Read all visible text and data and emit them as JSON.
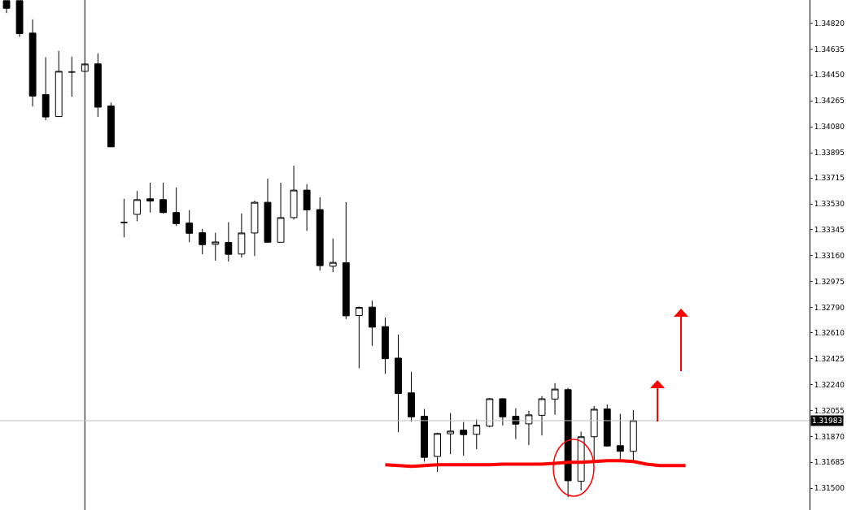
{
  "chart_data": {
    "type": "candlestick",
    "categories": [
      null,
      null,
      null,
      null,
      null,
      null,
      null,
      null,
      null,
      null,
      null,
      null,
      null,
      null,
      null,
      null,
      null,
      null,
      null,
      null,
      null,
      null,
      null,
      null,
      null,
      null,
      null,
      null,
      null,
      null,
      null,
      null,
      null,
      null,
      null,
      null,
      null,
      null,
      null,
      null,
      null,
      null,
      null,
      null,
      null,
      null,
      null,
      null,
      null,
      null,
      null,
      null,
      null,
      null,
      null,
      null,
      null,
      null,
      null,
      null,
      null,
      null
    ],
    "ohlc": [
      [
        1.3498,
        1.3498,
        1.34891,
        1.34926
      ],
      [
        1.3498,
        1.3498,
        1.34722,
        1.34745
      ],
      [
        1.34749,
        1.34847,
        1.34225,
        1.343
      ],
      [
        1.3431,
        1.34576,
        1.34127,
        1.3415
      ],
      [
        1.34153,
        1.34622,
        1.34153,
        1.34476
      ],
      [
        1.34473,
        1.34581,
        1.34295,
        1.3447
      ],
      [
        1.34476,
        1.34528,
        1.34476,
        1.34528
      ],
      [
        1.34529,
        1.34604,
        1.3415,
        1.3422
      ],
      [
        1.34229,
        1.34253,
        1.33937,
        1.33937
      ],
      [
        1.33397,
        1.33566,
        1.33291,
        1.33397
      ],
      [
        1.33455,
        1.33622,
        1.33406,
        1.3356
      ],
      [
        1.33566,
        1.33681,
        1.33468,
        1.3355
      ],
      [
        1.3356,
        1.33681,
        1.3346,
        1.33468
      ],
      [
        1.33468,
        1.33647,
        1.33372,
        1.33389
      ],
      [
        1.33393,
        1.33485,
        1.33256,
        1.3332
      ],
      [
        1.33324,
        1.33352,
        1.3317,
        1.33239
      ],
      [
        1.33241,
        1.33324,
        1.33124,
        1.33258
      ],
      [
        1.33255,
        1.33399,
        1.33118,
        1.3317
      ],
      [
        1.33172,
        1.33462,
        1.33147,
        1.33322
      ],
      [
        1.33322,
        1.33553,
        1.33158,
        1.33541
      ],
      [
        1.33541,
        1.3371,
        1.33256,
        1.33256
      ],
      [
        1.33256,
        1.33681,
        1.33256,
        1.33432
      ],
      [
        1.33432,
        1.33802,
        1.33418,
        1.33628
      ],
      [
        1.33628,
        1.3367,
        1.33337,
        1.33487
      ],
      [
        1.33489,
        1.33577,
        1.33054,
        1.33089
      ],
      [
        1.33085,
        1.33283,
        1.33043,
        1.33112
      ],
      [
        1.3311,
        1.33543,
        1.32708,
        1.32731
      ],
      [
        1.32733,
        1.32797,
        1.32356,
        1.32791
      ],
      [
        1.32793,
        1.32839,
        1.32517,
        1.3265
      ],
      [
        1.32654,
        1.32718,
        1.32316,
        1.32425
      ],
      [
        1.32429,
        1.32597,
        1.319,
        1.32177
      ],
      [
        1.32181,
        1.32331,
        1.31975,
        1.3201
      ],
      [
        1.32014,
        1.32066,
        1.3169,
        1.31721
      ],
      [
        1.31727,
        1.31897,
        1.31617,
        1.31891
      ],
      [
        1.31889,
        1.32037,
        1.31744,
        1.31908
      ],
      [
        1.31915,
        1.31973,
        1.31733,
        1.31883
      ],
      [
        1.31885,
        1.31991,
        1.31779,
        1.3195
      ],
      [
        1.31943,
        1.32145,
        1.31935,
        1.32139
      ],
      [
        1.32139,
        1.32143,
        1.31949,
        1.3201
      ],
      [
        1.32014,
        1.32071,
        1.31851,
        1.31958
      ],
      [
        1.3196,
        1.32054,
        1.31808,
        1.32024
      ],
      [
        1.32021,
        1.32158,
        1.31877,
        1.32139
      ],
      [
        1.32137,
        1.3225,
        1.32025,
        1.32208
      ],
      [
        1.32204,
        1.32216,
        1.31437,
        1.31554
      ],
      [
        1.3155,
        1.31904,
        1.31485,
        1.31868
      ],
      [
        1.31868,
        1.32087,
        1.31698,
        1.32064
      ],
      [
        1.32066,
        1.32098,
        1.31799,
        1.31802
      ],
      [
        1.31804,
        1.32031,
        1.31698,
        1.31764
      ],
      [
        1.31764,
        1.32058,
        1.31698,
        1.31983
      ],
      null,
      null,
      null,
      null,
      null,
      null,
      null,
      null,
      null,
      null,
      null,
      null,
      null
    ],
    "series": [
      {
        "type": "line",
        "color": "#ff0000",
        "values": [
          null,
          null,
          null,
          null,
          null,
          null,
          null,
          null,
          null,
          null,
          null,
          null,
          null,
          null,
          null,
          null,
          null,
          null,
          null,
          null,
          null,
          null,
          null,
          null,
          null,
          null,
          null,
          null,
          null,
          1.31668,
          1.31662,
          1.31656,
          1.31662,
          1.31668,
          1.31668,
          1.31668,
          1.31668,
          1.31668,
          1.31673,
          1.31673,
          1.31673,
          1.31673,
          1.31679,
          1.31685,
          1.31685,
          1.31691,
          1.31697,
          1.31697,
          1.31691,
          1.31673,
          1.31662,
          1.31662,
          1.31662,
          null,
          null,
          null,
          null,
          null,
          null,
          null,
          null,
          null
        ]
      }
    ],
    "ylim": [
      1.31345,
      1.34985
    ],
    "yticks": [
      {
        "value": 1.3482,
        "label": "1.34820"
      },
      {
        "value": 1.34635,
        "label": "1.34635"
      },
      {
        "value": 1.3445,
        "label": "1.34450"
      },
      {
        "value": 1.34265,
        "label": "1.34265"
      },
      {
        "value": 1.3408,
        "label": "1.34080"
      },
      {
        "value": 1.33895,
        "label": "1.33895"
      },
      {
        "value": 1.33715,
        "label": "1.33715"
      },
      {
        "value": 1.3353,
        "label": "1.33530"
      },
      {
        "value": 1.33345,
        "label": "1.33345"
      },
      {
        "value": 1.3316,
        "label": "1.33160"
      },
      {
        "value": 1.32975,
        "label": "1.32975"
      },
      {
        "value": 1.3279,
        "label": "1.32790"
      },
      {
        "value": 1.3261,
        "label": "1.32610"
      },
      {
        "value": 1.32425,
        "label": "1.32425"
      },
      {
        "value": 1.3224,
        "label": "1.32240"
      },
      {
        "value": 1.32055,
        "label": "1.32055"
      },
      {
        "value": 1.3187,
        "label": "1.31870"
      },
      {
        "value": 1.31685,
        "label": "1.31685"
      },
      {
        "value": 1.315,
        "label": "1.31500"
      }
    ],
    "tick_labels": "y",
    "grid": false,
    "ref_lines": [
      {
        "axis": "y",
        "value": 1.31983,
        "label": "1.31983",
        "color": "#c0c0c0"
      }
    ]
  }
}
